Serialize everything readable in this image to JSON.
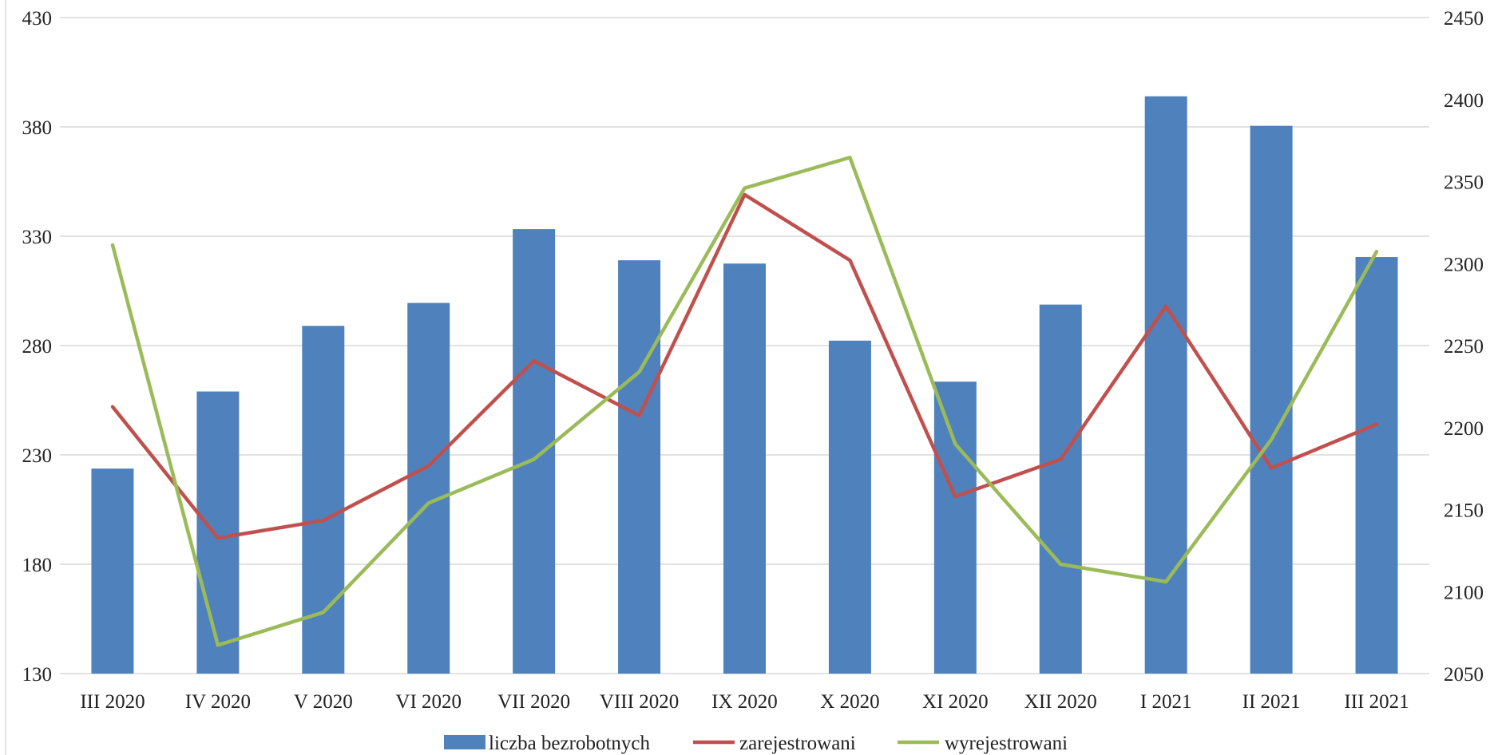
{
  "chart_data": {
    "type": "bar",
    "categories": [
      "III 2020",
      "IV 2020",
      "V 2020",
      "VI 2020",
      "VII 2020",
      "VIII 2020",
      "IX 2020",
      "X 2020",
      "XI 2020",
      "XII 2020",
      "I 2021",
      "II 2021",
      "III 2021"
    ],
    "y_left": {
      "ticks": [
        "130",
        "180",
        "230",
        "280",
        "330",
        "380",
        "430"
      ],
      "ylim": [
        130,
        430
      ]
    },
    "y_right": {
      "ticks": [
        "2050",
        "2100",
        "2150",
        "2200",
        "2250",
        "2300",
        "2350",
        "2400",
        "2450"
      ],
      "ylim": [
        2050,
        2450
      ]
    },
    "series": [
      {
        "name": "liczba bezrobotnych",
        "type": "bar",
        "axis": "right",
        "color": "#4f81bd",
        "values": [
          2175,
          2222,
          2262,
          2276,
          2321,
          2302,
          2300,
          2253,
          2228,
          2275,
          2402,
          2384,
          2304
        ]
      },
      {
        "name": "zarejestrowani",
        "type": "line",
        "axis": "left",
        "color": "#c0504d",
        "values": [
          252,
          192,
          200,
          225,
          273,
          248,
          349,
          319,
          211,
          228,
          298,
          224,
          244
        ]
      },
      {
        "name": "wyrejestrowani",
        "type": "line",
        "axis": "left",
        "color": "#9bbb59",
        "values": [
          326,
          143,
          158,
          208,
          228,
          268,
          352,
          366,
          235,
          180,
          172,
          237,
          323
        ]
      }
    ],
    "grid": true,
    "legend": "bottom-center"
  }
}
